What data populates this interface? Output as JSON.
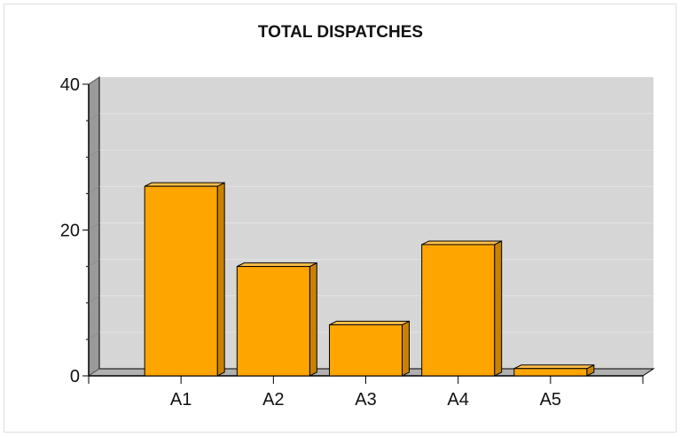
{
  "chart_data": {
    "type": "bar",
    "title": "TOTAL DISPATCHES",
    "xlabel": "",
    "ylabel": "",
    "categories": [
      "A1",
      "A2",
      "A3",
      "A4",
      "A5"
    ],
    "values": [
      26,
      15,
      7,
      18,
      1
    ],
    "ylim": [
      0,
      40
    ],
    "yticks": [
      "0",
      "20",
      "40"
    ],
    "grid": true,
    "three_d": true,
    "colors": {
      "bar_front": "#FFA500",
      "bar_top": "#FFC04A",
      "bar_side": "#C98200",
      "bar_outline": "#000000",
      "back_wall": "#D6D6D6",
      "gridline": "#E4E4E4"
    }
  }
}
